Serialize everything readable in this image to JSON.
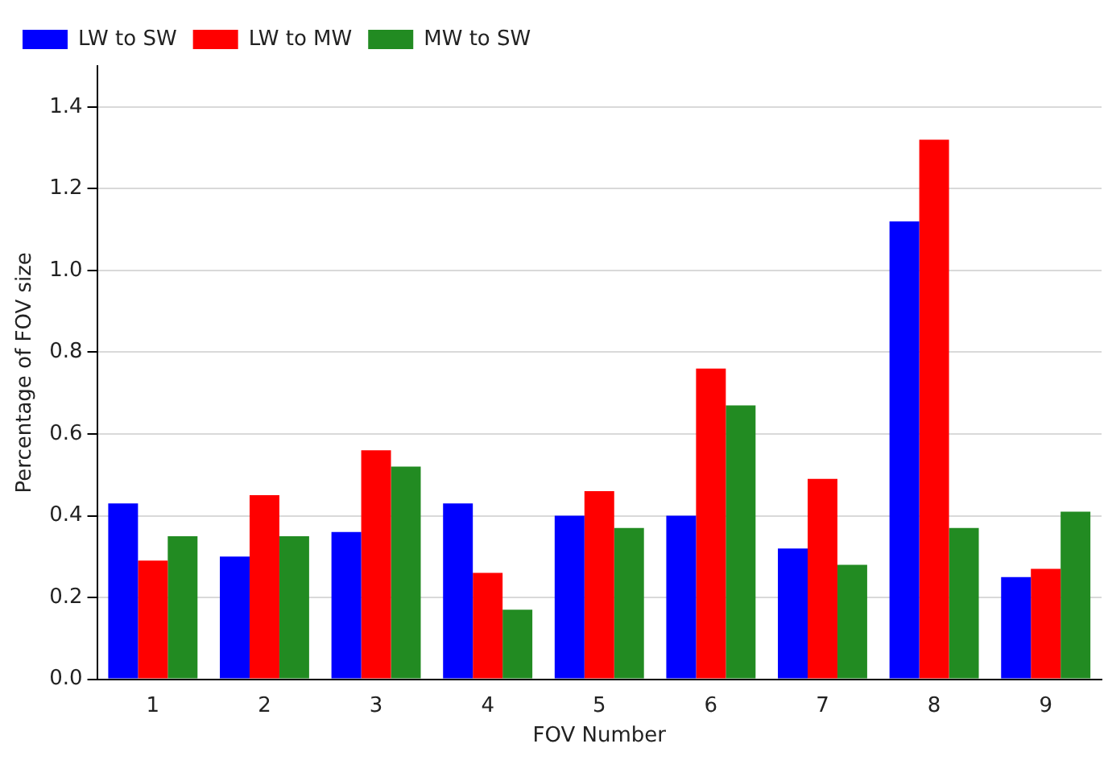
{
  "chart_data": {
    "type": "bar",
    "xlabel": "FOV Number",
    "ylabel": "Percentage of FOV size",
    "categories": [
      "1",
      "2",
      "3",
      "4",
      "5",
      "6",
      "7",
      "8",
      "9"
    ],
    "series": [
      {
        "name": "LW to SW",
        "color": "#0000ff",
        "values": [
          0.43,
          0.3,
          0.36,
          0.43,
          0.4,
          0.4,
          0.32,
          1.12,
          0.25
        ]
      },
      {
        "name": "LW to MW",
        "color": "#ff0000",
        "values": [
          0.29,
          0.45,
          0.56,
          0.26,
          0.46,
          0.76,
          0.49,
          1.32,
          0.27
        ]
      },
      {
        "name": "MW to SW",
        "color": "#228b22",
        "values": [
          0.35,
          0.35,
          0.52,
          0.17,
          0.37,
          0.67,
          0.28,
          0.37,
          0.41
        ]
      }
    ],
    "ylim": [
      0,
      1.5
    ],
    "yticks": [
      {
        "value": 0,
        "label": "0.0"
      },
      {
        "value": 0.2,
        "label": "0.2"
      },
      {
        "value": 0.4,
        "label": "0.4"
      },
      {
        "value": 0.6,
        "label": "0.6"
      },
      {
        "value": 0.8,
        "label": "0.8"
      },
      {
        "value": 1.0,
        "label": "1.0"
      },
      {
        "value": 1.2,
        "label": "1.2"
      },
      {
        "value": 1.4,
        "label": "1.4"
      }
    ],
    "grid": "y",
    "legend": "top left"
  }
}
